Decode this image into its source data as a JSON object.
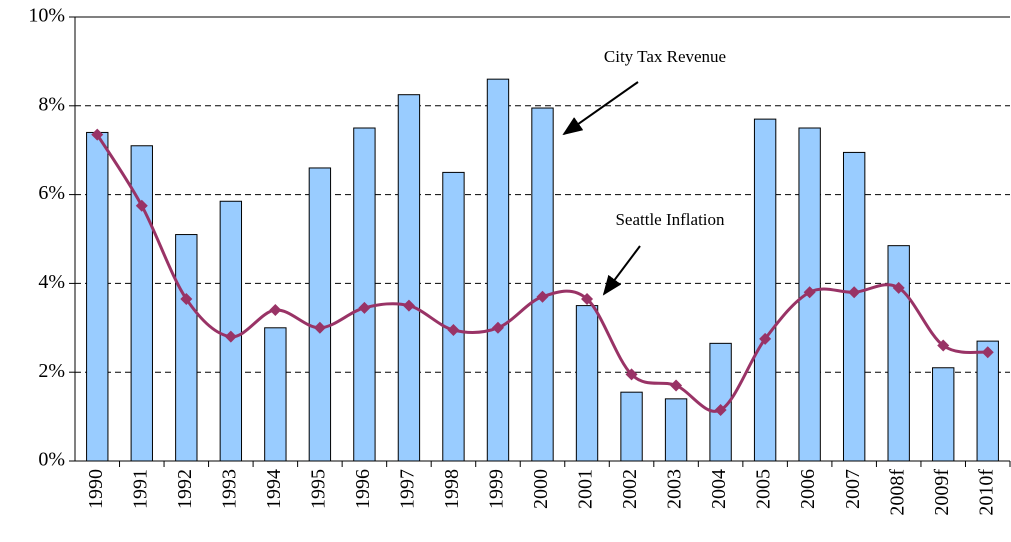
{
  "chart_data": {
    "type": "bar-line",
    "categories": [
      "1990",
      "1991",
      "1992",
      "1993",
      "1994",
      "1995",
      "1996",
      "1997",
      "1998",
      "1999",
      "2000",
      "2001",
      "2002",
      "2003",
      "2004",
      "2005",
      "2006",
      "2007",
      "2008f",
      "2009f",
      "2010f"
    ],
    "series": [
      {
        "name": "City Tax Revenue",
        "type": "bar",
        "color": "#99ccff",
        "values": [
          7.4,
          7.1,
          5.1,
          5.85,
          3.0,
          6.6,
          7.5,
          8.25,
          6.5,
          8.6,
          7.95,
          3.5,
          1.55,
          1.4,
          2.65,
          7.7,
          7.5,
          6.95,
          4.85,
          2.1,
          2.7
        ]
      },
      {
        "name": "Seattle Inflation",
        "type": "line",
        "color": "#993366",
        "values": [
          7.35,
          5.75,
          3.65,
          2.8,
          3.4,
          3.0,
          3.45,
          3.5,
          2.95,
          3.0,
          3.7,
          3.65,
          1.95,
          1.7,
          1.15,
          2.75,
          3.8,
          3.8,
          3.9,
          2.6,
          2.45
        ]
      }
    ],
    "ylim": [
      0,
      10
    ],
    "yticks": [
      {
        "value": 0,
        "label": "0%"
      },
      {
        "value": 2,
        "label": "2%"
      },
      {
        "value": 4,
        "label": "4%"
      },
      {
        "value": 6,
        "label": "6%"
      },
      {
        "value": 8,
        "label": "8%"
      },
      {
        "value": 10,
        "label": "10%"
      }
    ],
    "grid": true
  }
}
